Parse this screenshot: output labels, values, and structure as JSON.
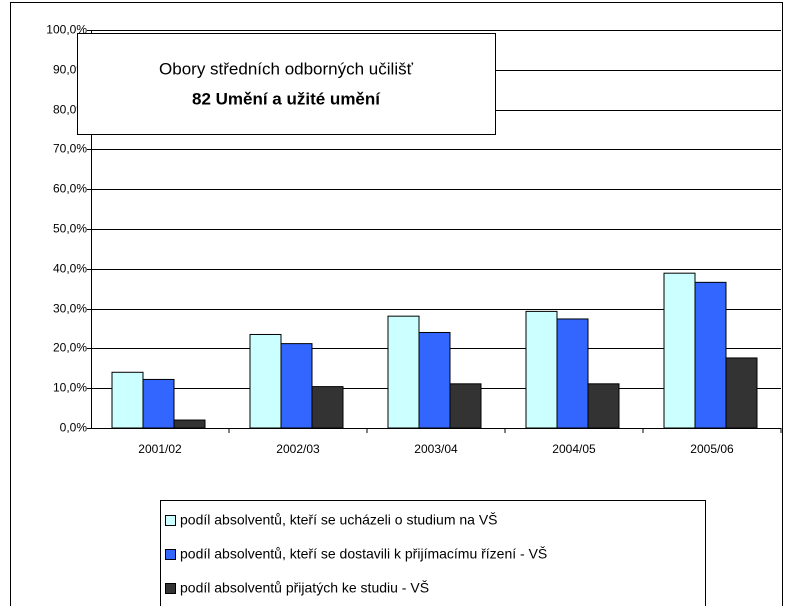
{
  "chart_data": {
    "type": "bar",
    "title": "Obory středních odborných učilišť",
    "subtitle": "82 Umění a užité umění",
    "categories": [
      "2001/02",
      "2002/03",
      "2003/04",
      "2004/05",
      "2005/06"
    ],
    "series": [
      {
        "name": "podíl absolventů, kteří se ucházeli o studium na VŠ",
        "color": "#ccffff",
        "values": [
          14.0,
          23.5,
          28.1,
          29.3,
          38.9
        ]
      },
      {
        "name": "podíl absolventů, kteří se dostavili k přijímacímu řízení - VŠ",
        "color": "#3366ff",
        "values": [
          12.2,
          21.2,
          24.0,
          27.4,
          36.6
        ]
      },
      {
        "name": "podíl absolventů přijatých ke studiu - VŠ",
        "color": "#333333",
        "values": [
          2.0,
          10.4,
          11.1,
          11.1,
          17.6
        ]
      }
    ],
    "ylim": [
      0,
      100
    ],
    "yticks": [
      {
        "value": 0,
        "label": "0,0%"
      },
      {
        "value": 10,
        "label": "10,0%"
      },
      {
        "value": 20,
        "label": "20,0%"
      },
      {
        "value": 30,
        "label": "30,0%"
      },
      {
        "value": 40,
        "label": "40,0%"
      },
      {
        "value": 50,
        "label": "50,0%"
      },
      {
        "value": 60,
        "label": "60,0%"
      },
      {
        "value": 70,
        "label": "70,0%"
      },
      {
        "value": 80,
        "label": "80,0%"
      },
      {
        "value": 90,
        "label": "90,0%"
      },
      {
        "value": 100,
        "label": "100,0%"
      }
    ],
    "grid": true
  }
}
